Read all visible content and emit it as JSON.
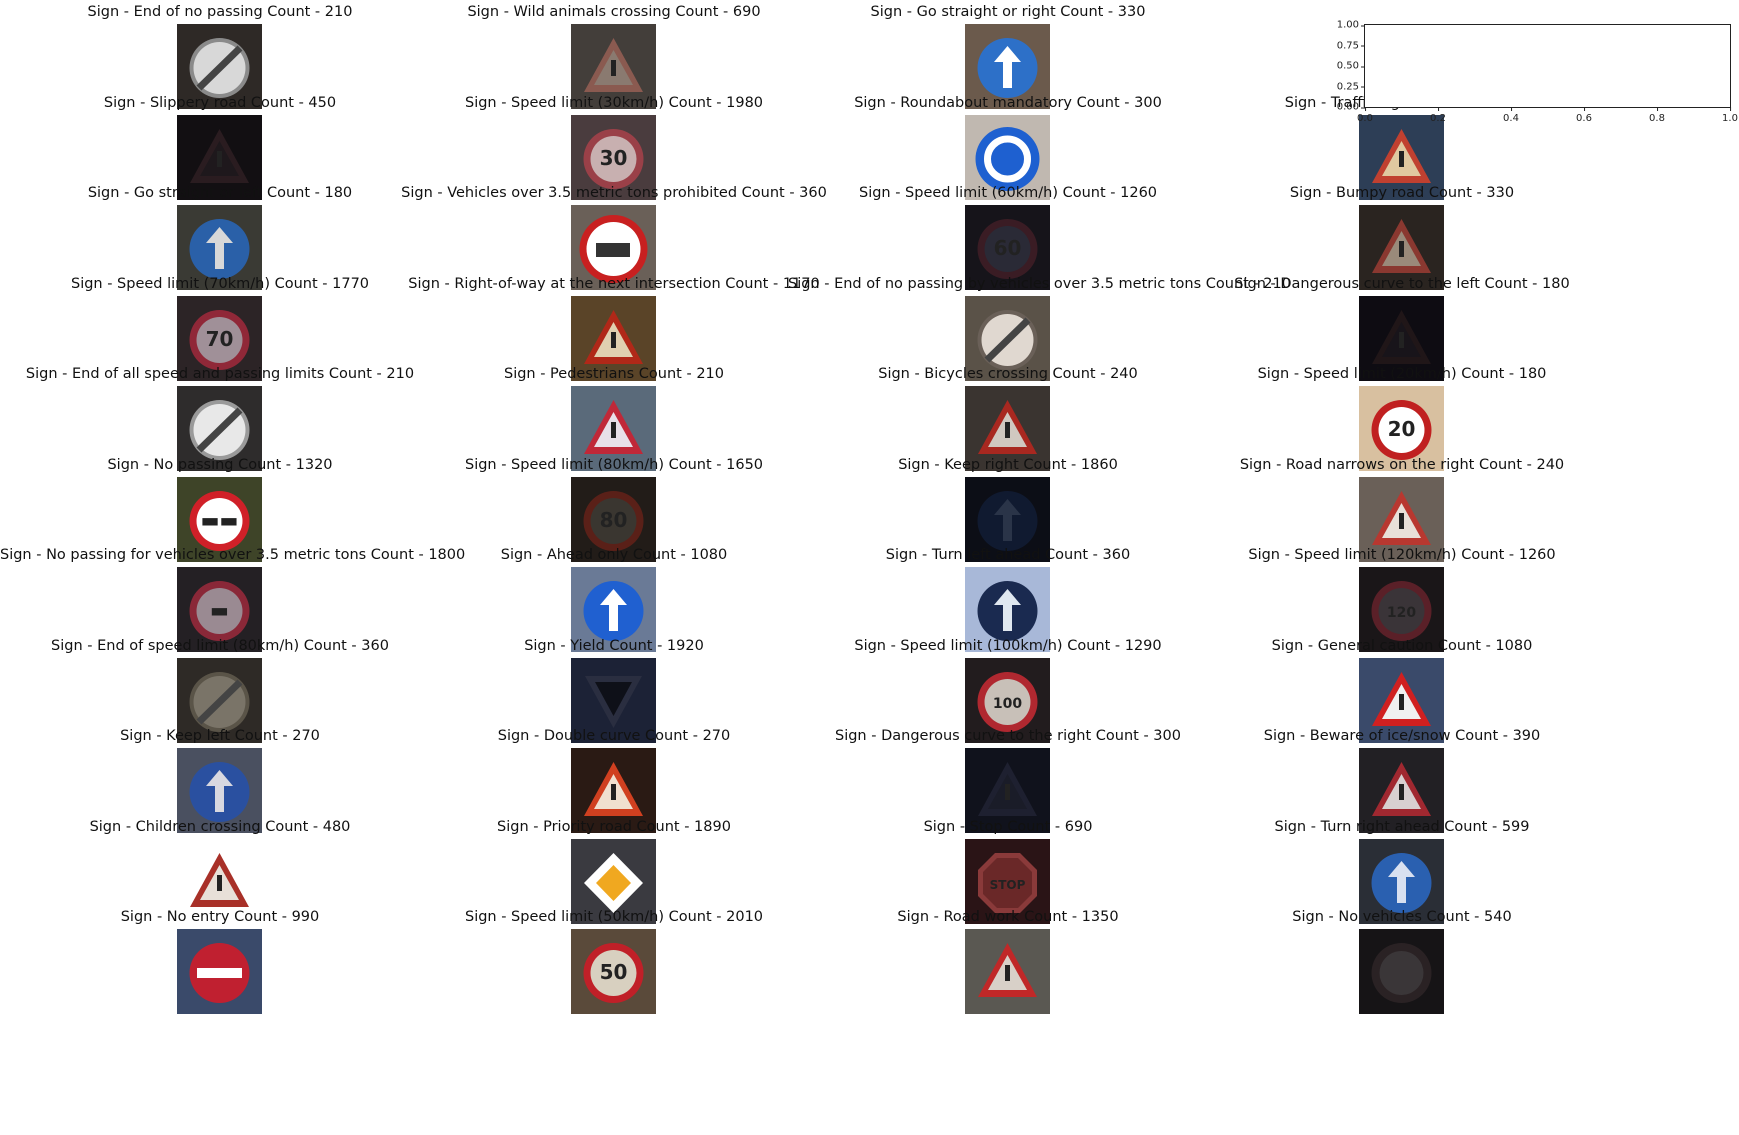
{
  "figure": {
    "panels": [
      [
        {
          "title": "Sign - End of no passing Count - 210",
          "bg": "#2e2926",
          "icon": "circle-slash",
          "fg": "#d8d8d8",
          "ring": "#8a8a8a"
        },
        {
          "title": "Sign - Wild animals crossing Count - 690",
          "bg": "#433e3a",
          "icon": "triangle",
          "fg": "#8a7a70",
          "ring": "#8a5a50"
        },
        {
          "title": "Sign - Go straight or right Count - 330",
          "bg": "#6b5a4c",
          "icon": "blue-arrow",
          "fg": "#ffffff",
          "ring": "#2d70c8"
        },
        {
          "title": "",
          "empty": true
        }
      ],
      [
        {
          "title": "Sign - Slippery road Count - 450",
          "bg": "#120f12",
          "icon": "triangle",
          "fg": "#1e181c",
          "ring": "#2a1c20"
        },
        {
          "title": "Sign - Speed limit (30km/h) Count - 1980",
          "bg": "#4a3c3e",
          "icon": "speed",
          "fg": "#c8b0b0",
          "ring": "#9a4048",
          "label": "30"
        },
        {
          "title": "Sign - Roundabout mandatory Count - 300",
          "bg": "#c0b8b0",
          "icon": "roundabout",
          "fg": "#ffffff",
          "ring": "#1e60d0"
        },
        {
          "title": "Sign - Traffic signals Count - 540",
          "bg": "#2d3e56",
          "icon": "triangle",
          "fg": "#e0c8a0",
          "ring": "#c04030"
        }
      ],
      [
        {
          "title": "Sign - Go straight or left Count - 180",
          "bg": "#3a3a34",
          "icon": "blue-arrow",
          "fg": "#d8d8d8",
          "ring": "#2a60a8"
        },
        {
          "title": "Sign - Vehicles over 3.5 metric tons prohibited Count - 360",
          "bg": "#6a6058",
          "icon": "truck",
          "fg": "#ffffff",
          "ring": "#c82020"
        },
        {
          "title": "Sign - Speed limit (60km/h) Count - 1260",
          "bg": "#16141a",
          "icon": "speed",
          "fg": "#2a2a36",
          "ring": "#3a1c24",
          "label": "60"
        },
        {
          "title": "Sign - Bumpy road Count - 330",
          "bg": "#2a2420",
          "icon": "triangle",
          "fg": "#9a8a7a",
          "ring": "#8a3830"
        }
      ],
      [
        {
          "title": "Sign - Speed limit (70km/h) Count - 1770",
          "bg": "#2c2426",
          "icon": "speed",
          "fg": "#a09098",
          "ring": "#902838",
          "label": "70"
        },
        {
          "title": "Sign - Right-of-way at the next intersection Count - 1170",
          "bg": "#5a4428",
          "icon": "triangle",
          "fg": "#e0d0b0",
          "ring": "#b02818"
        },
        {
          "title": "Sign - End of no passing by vehicles over 3.5 metric tons Count - 210",
          "bg": "#5a5248",
          "icon": "circle-slash",
          "fg": "#e0d8d0",
          "ring": "#6a6058"
        },
        {
          "title": "Sign - Dangerous curve to the left Count - 180",
          "bg": "#0e0c12",
          "icon": "triangle",
          "fg": "#18141a",
          "ring": "#201618"
        }
      ],
      [
        {
          "title": "Sign - End of all speed and passing limits Count - 210",
          "bg": "#2e2c2c",
          "icon": "circle-slash",
          "fg": "#e8e8e8",
          "ring": "#9a9a9a"
        },
        {
          "title": "Sign - Pedestrians Count - 210",
          "bg": "#5a6a7a",
          "icon": "triangle",
          "fg": "#e8e0e8",
          "ring": "#c02838"
        },
        {
          "title": "Sign - Bicycles crossing Count - 240",
          "bg": "#3a3430",
          "icon": "triangle",
          "fg": "#d0c8c0",
          "ring": "#a82820"
        },
        {
          "title": "Sign - Speed limit (20km/h) Count - 180",
          "bg": "#d8c0a0",
          "icon": "speed",
          "fg": "#ffffff",
          "ring": "#c02020",
          "label": "20"
        }
      ],
      [
        {
          "title": "Sign - No passing Count - 1320",
          "bg": "#3e4428",
          "icon": "speed",
          "fg": "#ffffff",
          "ring": "#d02028",
          "label": "▬▬"
        },
        {
          "title": "Sign - Speed limit (80km/h) Count - 1650",
          "bg": "#221c18",
          "icon": "speed",
          "fg": "#3a3630",
          "ring": "#5a2018",
          "label": "80"
        },
        {
          "title": "Sign - Keep right Count - 1860",
          "bg": "#0c0e16",
          "icon": "blue-arrow",
          "fg": "#2a3448",
          "ring": "#101a30"
        },
        {
          "title": "Sign - Road narrows on the right Count - 240",
          "bg": "#6a6058",
          "icon": "triangle",
          "fg": "#e8e0d8",
          "ring": "#b83830"
        }
      ],
      [
        {
          "title": "Sign - No passing for vehicles over 3.5 metric tons Count - 1800",
          "bg": "#242024",
          "icon": "speed",
          "fg": "#9a8a92",
          "ring": "#8a2838",
          "label": "▬"
        },
        {
          "title": "Sign - Ahead only Count - 1080",
          "bg": "#6a7a96",
          "icon": "blue-arrow",
          "fg": "#ffffff",
          "ring": "#2060d0"
        },
        {
          "title": "Sign - Turn left ahead Count - 360",
          "bg": "#a8b8d8",
          "icon": "blue-arrow",
          "fg": "#e0e8f0",
          "ring": "#1a2a50"
        },
        {
          "title": "Sign - Speed limit (120km/h) Count - 1260",
          "bg": "#1a1618",
          "icon": "speed",
          "fg": "#3a3438",
          "ring": "#5a2028",
          "label": "120"
        }
      ],
      [
        {
          "title": "Sign - End of speed limit (80km/h) Count - 360",
          "bg": "#2e2a26",
          "icon": "circle-slash",
          "fg": "#7a7468",
          "ring": "#5a5448"
        },
        {
          "title": "Sign - Yield Count - 1920",
          "bg": "#1c2236",
          "icon": "yield",
          "fg": "#0e1018",
          "ring": "#2a2e40"
        },
        {
          "title": "Sign - Speed limit (100km/h) Count - 1290",
          "bg": "#221c1e",
          "icon": "speed",
          "fg": "#c8c0b8",
          "ring": "#b02830",
          "label": "100"
        },
        {
          "title": "Sign - General caution Count - 1080",
          "bg": "#3a4a6a",
          "icon": "triangle",
          "fg": "#f0f0f0",
          "ring": "#d02020"
        }
      ],
      [
        {
          "title": "Sign - Keep left Count - 270",
          "bg": "#4a5060",
          "icon": "blue-arrow",
          "fg": "#d8d8e0",
          "ring": "#2a50a0"
        },
        {
          "title": "Sign - Double curve Count - 270",
          "bg": "#2a1a14",
          "icon": "triangle",
          "fg": "#f0e0d0",
          "ring": "#d04020"
        },
        {
          "title": "Sign - Dangerous curve to the right Count - 300",
          "bg": "#10121c",
          "icon": "triangle",
          "fg": "#1a1c28",
          "ring": "#1e2030"
        },
        {
          "title": "Sign - Beware of ice/snow Count - 390",
          "bg": "#222024",
          "icon": "triangle",
          "fg": "#d8d0d0",
          "ring": "#a02830"
        }
      ],
      [
        {
          "title": "Sign - Children crossing Count - 480",
          "bg": "#ffffff",
          "icon": "triangle",
          "fg": "#e8e0d8",
          "ring": "#a83028"
        },
        {
          "title": "Sign - Priority road Count - 1890",
          "bg": "#3a3a40",
          "icon": "diamond",
          "fg": "#f0a820",
          "ring": "#ffffff"
        },
        {
          "title": "Sign - Stop Count - 690",
          "bg": "#2a1416",
          "icon": "stop",
          "fg": "#6a2828",
          "ring": "#8a3a3a",
          "label": "STOP"
        },
        {
          "title": "Sign - Turn right ahead Count - 599",
          "bg": "#2a2e36",
          "icon": "blue-arrow",
          "fg": "#d8e0f0",
          "ring": "#2a60b0"
        }
      ],
      [
        {
          "title": "Sign - No entry Count - 990",
          "bg": "#3a4a6a",
          "icon": "no-entry",
          "fg": "#ffffff",
          "ring": "#c02030"
        },
        {
          "title": "Sign - Speed limit (50km/h) Count - 2010",
          "bg": "#5a4a3a",
          "icon": "speed",
          "fg": "#d8d0c0",
          "ring": "#c02028",
          "label": "50"
        },
        {
          "title": "Sign - Road work Count - 1350",
          "bg": "#5a5852",
          "icon": "triangle",
          "fg": "#d8d0c8",
          "ring": "#c02828"
        },
        {
          "title": "Sign - No vehicles Count - 540",
          "bg": "#161416",
          "icon": "circle",
          "fg": "#3a3638",
          "ring": "#2a2224"
        }
      ]
    ],
    "empty_axes": {
      "yticks": [
        "0.00",
        "0.25",
        "0.50",
        "0.75",
        "1.00"
      ],
      "xticks": [
        "0.0",
        "0.2",
        "0.4",
        "0.6",
        "0.8",
        "1.0"
      ],
      "xlim": [
        0,
        1
      ],
      "ylim": [
        0,
        1
      ]
    }
  }
}
